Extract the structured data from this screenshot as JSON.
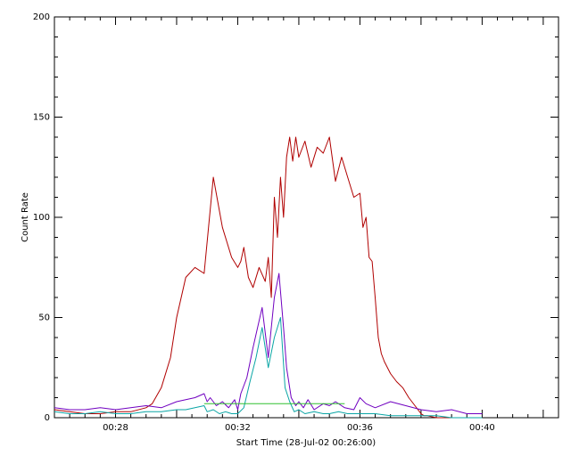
{
  "chart_data": {
    "type": "line",
    "xlabel": "Start Time (28-Jul-02 00:26:00)",
    "ylabel": "Count Rate",
    "xlim": [
      0.0,
      16.5
    ],
    "ylim": [
      0,
      200
    ],
    "x_ticks": [
      {
        "value": 2,
        "label": "00:28"
      },
      {
        "value": 6,
        "label": "00:32"
      },
      {
        "value": 10,
        "label": "00:36"
      },
      {
        "value": 14,
        "label": "00:40"
      }
    ],
    "y_ticks": [
      {
        "value": 0,
        "label": "0"
      },
      {
        "value": 50,
        "label": "50"
      },
      {
        "value": 100,
        "label": "100"
      },
      {
        "value": 150,
        "label": "150"
      },
      {
        "value": 200,
        "label": "200"
      }
    ],
    "grid": false,
    "series": [
      {
        "color": "#b00000",
        "x": [
          0.0,
          0.5,
          1.0,
          1.5,
          2.0,
          2.5,
          3.0,
          3.2,
          3.5,
          3.8,
          4.0,
          4.3,
          4.6,
          4.9,
          5.2,
          5.5,
          5.8,
          6.0,
          6.1,
          6.2,
          6.35,
          6.5,
          6.7,
          6.9,
          7.0,
          7.1,
          7.2,
          7.3,
          7.4,
          7.5,
          7.6,
          7.7,
          7.8,
          7.9,
          8.0,
          8.2,
          8.4,
          8.6,
          8.8,
          9.0,
          9.2,
          9.4,
          9.6,
          9.8,
          10.0,
          10.1,
          10.2,
          10.3,
          10.4,
          10.5,
          10.6,
          10.7,
          10.8,
          11.0,
          11.2,
          11.4,
          11.6,
          11.8,
          11.9,
          12.0,
          12.1,
          12.2,
          12.5,
          13.0,
          13.5,
          14.0
        ],
        "y": [
          4,
          3,
          2,
          2,
          3,
          3,
          5,
          7,
          15,
          30,
          50,
          70,
          75,
          72,
          120,
          95,
          80,
          75,
          78,
          85,
          70,
          65,
          75,
          68,
          80,
          60,
          110,
          90,
          120,
          100,
          130,
          140,
          128,
          140,
          130,
          138,
          125,
          135,
          132,
          140,
          118,
          130,
          120,
          110,
          112,
          95,
          100,
          80,
          78,
          60,
          40,
          32,
          28,
          22,
          18,
          15,
          10,
          6,
          4,
          2,
          1,
          1,
          0,
          0,
          0,
          0
        ]
      },
      {
        "color": "#7000c0",
        "x": [
          0.0,
          0.5,
          1.0,
          1.5,
          2.0,
          2.5,
          3.0,
          3.5,
          4.0,
          4.3,
          4.6,
          4.9,
          5.0,
          5.1,
          5.3,
          5.5,
          5.7,
          5.9,
          6.0,
          6.1,
          6.3,
          6.5,
          6.8,
          7.0,
          7.2,
          7.35,
          7.5,
          7.6,
          7.75,
          7.9,
          8.0,
          8.15,
          8.3,
          8.5,
          8.8,
          9.0,
          9.2,
          9.5,
          9.8,
          10.0,
          10.2,
          10.5,
          11.0,
          11.5,
          12.0,
          12.5,
          13.0,
          13.5,
          14.0
        ],
        "y": [
          5,
          4,
          4,
          5,
          4,
          5,
          6,
          5,
          8,
          9,
          10,
          12,
          8,
          10,
          6,
          8,
          5,
          9,
          4,
          12,
          20,
          35,
          55,
          30,
          60,
          72,
          45,
          25,
          10,
          6,
          8,
          5,
          9,
          4,
          7,
          6,
          8,
          5,
          4,
          10,
          7,
          5,
          8,
          6,
          4,
          3,
          4,
          2,
          2
        ]
      },
      {
        "color": "#0aa5a5",
        "x": [
          0.0,
          0.5,
          1.0,
          1.5,
          2.0,
          2.5,
          3.0,
          3.5,
          4.0,
          4.3,
          4.6,
          4.9,
          5.0,
          5.2,
          5.4,
          5.6,
          5.8,
          6.0,
          6.2,
          6.4,
          6.6,
          6.8,
          7.0,
          7.2,
          7.4,
          7.55,
          7.7,
          7.85,
          8.0,
          8.2,
          8.5,
          8.8,
          9.0,
          9.3,
          9.6,
          10.0,
          10.5,
          11.0,
          11.5,
          12.0,
          12.5,
          13.0,
          13.5,
          14.0
        ],
        "y": [
          3,
          2,
          2,
          3,
          2,
          2,
          3,
          3,
          4,
          4,
          5,
          6,
          3,
          4,
          2,
          3,
          2,
          2,
          5,
          18,
          30,
          45,
          25,
          40,
          50,
          15,
          8,
          3,
          4,
          2,
          3,
          2,
          2,
          3,
          2,
          2,
          2,
          1,
          1,
          1,
          1,
          0,
          0,
          0
        ]
      },
      {
        "color": "#30c030",
        "x": [
          4.9,
          6.0,
          9.5
        ],
        "y": [
          7,
          7,
          7
        ]
      }
    ]
  }
}
